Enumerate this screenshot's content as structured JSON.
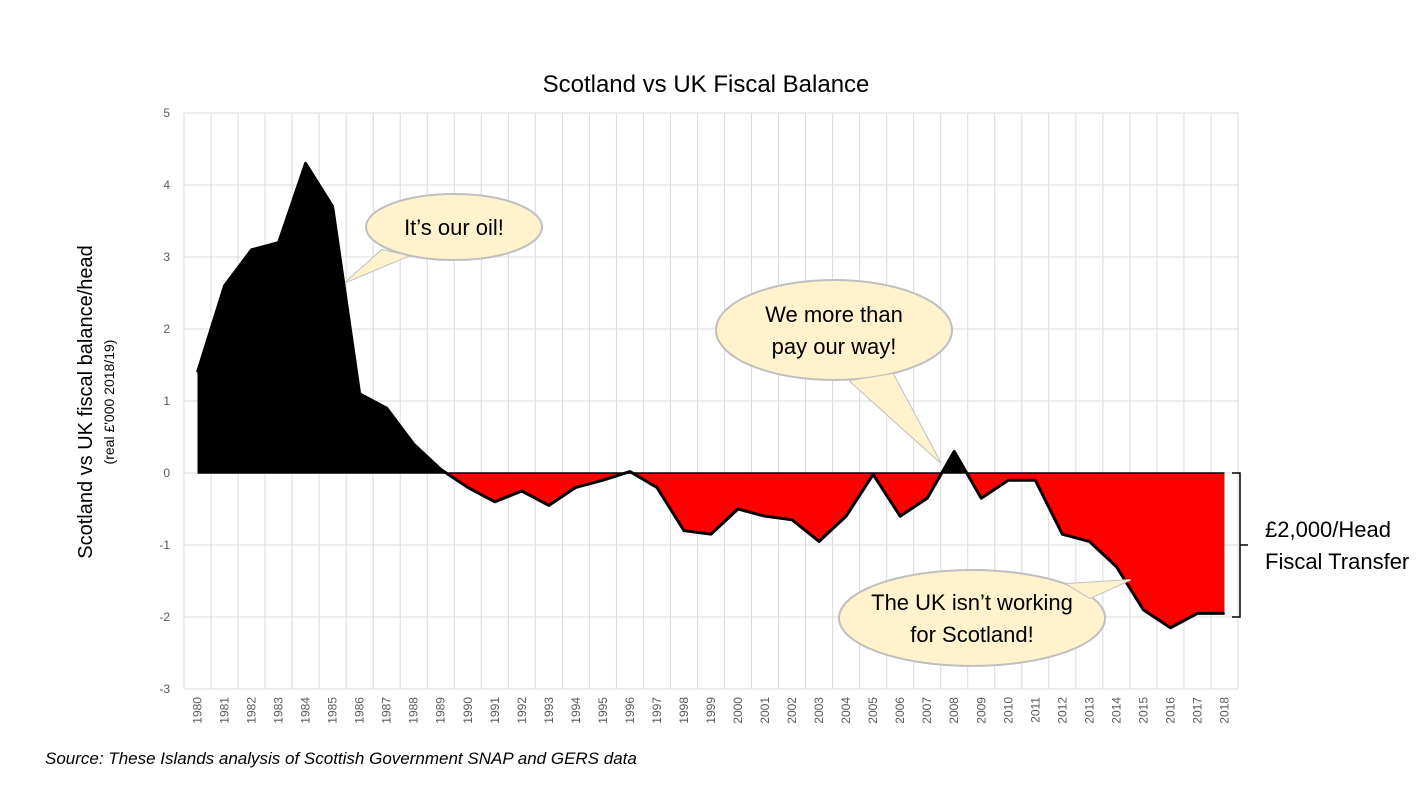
{
  "chart_data": {
    "type": "area",
    "title": "Scotland vs UK Fiscal Balance",
    "ylabel": "Scotland vs UK fiscal balance/head",
    "ylabel_sub": "(real £'000 2018/19)",
    "xlabel": "",
    "x": [
      "1980",
      "1981",
      "1982",
      "1983",
      "1984",
      "1985",
      "1986",
      "1987",
      "1988",
      "1989",
      "1990",
      "1991",
      "1992",
      "1993",
      "1994",
      "1995",
      "1996",
      "1997",
      "1998",
      "1999",
      "2000",
      "2001",
      "2002",
      "2003",
      "2004",
      "2005",
      "2006",
      "2007",
      "2008",
      "2009",
      "2010",
      "2011",
      "2012",
      "2013",
      "2014",
      "2015",
      "2016",
      "2017",
      "2018"
    ],
    "values": [
      1.4,
      2.6,
      3.1,
      3.2,
      4.3,
      3.7,
      1.1,
      0.9,
      0.4,
      0.05,
      -0.2,
      -0.4,
      -0.25,
      -0.45,
      -0.2,
      -0.1,
      0.02,
      -0.2,
      -0.8,
      -0.85,
      -0.5,
      -0.6,
      -0.65,
      -0.95,
      -0.6,
      -0.02,
      -0.6,
      -0.35,
      0.3,
      -0.35,
      -0.1,
      -0.1,
      -0.85,
      -0.95,
      -1.3,
      -1.9,
      -2.15,
      -1.95,
      -1.95
    ],
    "ylim": [
      -3,
      5
    ],
    "yticks": [
      "5",
      "4",
      "3",
      "2",
      "1",
      "0",
      "-1",
      "-2",
      "-3"
    ],
    "grid": true,
    "positive_color": "#000000",
    "negative_color": "#ff0000",
    "annotations": [
      {
        "lines": [
          "It’s our oil!"
        ],
        "year": "1985"
      },
      {
        "lines": [
          "We more than",
          "pay our way!"
        ],
        "year": "2008"
      },
      {
        "lines": [
          "The UK isn’t working",
          "for Scotland!"
        ],
        "year": "2015"
      }
    ],
    "bracket_label": [
      "£2,000/Head",
      "Fiscal Transfer"
    ]
  },
  "source": "Source: These Islands analysis of Scottish Government SNAP and GERS data"
}
